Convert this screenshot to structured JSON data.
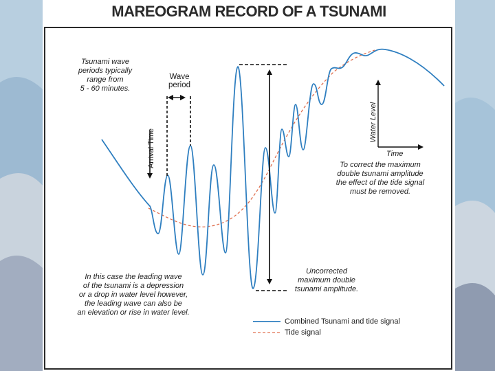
{
  "title": "MAREOGRAM RECORD OF A TSUNAMI",
  "notes": {
    "periods": "Tsunami wave\nperiods typically\nrange from\n5 - 60 minutes.",
    "wave_period": "Wave\nperiod",
    "arrival_time": "Arrival Time",
    "correct": "To correct the maximum\ndouble tsunami amplitude\nthe effect of the tide signal\nmust be removed.",
    "leading_wave": "In this case the leading wave\nof the tsunami is a depression\nor a drop in water level however,\nthe leading wave can also be\nan elevation or rise in water level.",
    "uncorrected": "Uncorrected\nmaximum double\ntsunami amplitude."
  },
  "axes_inset": {
    "y_label": "Water Level",
    "x_label": "Time"
  },
  "legend": {
    "combined": "Combined Tsunami and tide signal",
    "tide": "Tide signal"
  },
  "colors": {
    "signal": "#2f7fc0",
    "tide": "#e07050",
    "arrow": "#111111"
  }
}
